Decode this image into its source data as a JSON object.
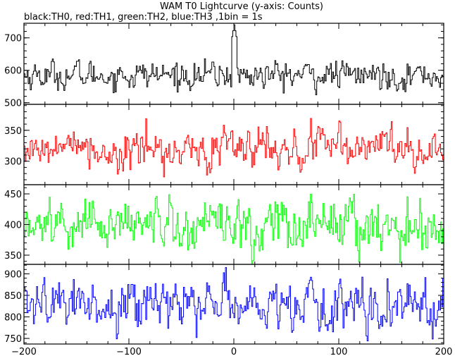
{
  "chart_data": {
    "type": "line",
    "title": "WAM T0 Lightcurve (y-axis: Counts)",
    "subtitle": "black:TH0, red:TH1, green:TH2, blue:TH3 ,1bin = 1s",
    "xlim": [
      -200,
      200
    ],
    "xticks": [
      -200,
      -100,
      0,
      100,
      200
    ],
    "xtick_labels": [
      "−200",
      "−100",
      "0",
      "100",
      "200"
    ],
    "panels": [
      {
        "series": "TH0",
        "color": "#000000",
        "ylim": [
          495,
          745
        ],
        "yticks": [
          500,
          600,
          700
        ],
        "ytick_labels": [
          "500",
          "600",
          "700"
        ],
        "mean": 585,
        "noise": 22,
        "spike": {
          "x": 0,
          "peak": 740,
          "width": 2.5
        }
      },
      {
        "series": "TH1",
        "color": "#ff0000",
        "ylim": [
          262,
          392
        ],
        "yticks": [
          300,
          350
        ],
        "ytick_labels": [
          "300",
          "350"
        ],
        "mean": 320,
        "noise": 17
      },
      {
        "series": "TH2",
        "color": "#00ff00",
        "ylim": [
          335,
          465
        ],
        "yticks": [
          350,
          400,
          450
        ],
        "ytick_labels": [
          "350",
          "400",
          "450"
        ],
        "mean": 400,
        "noise": 22
      },
      {
        "series": "TH3",
        "color": "#0000ff",
        "ylim": [
          737,
          922
        ],
        "yticks": [
          750,
          800,
          850,
          900
        ],
        "ytick_labels": [
          "750",
          "800",
          "850",
          "900"
        ],
        "mean": 828,
        "noise": 30
      }
    ]
  }
}
